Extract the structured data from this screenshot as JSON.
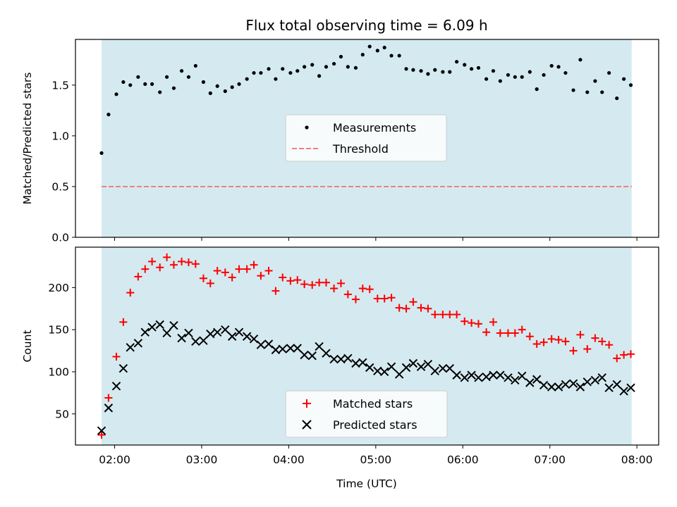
{
  "title": "Flux total observing time = 6.09 h",
  "xlabel": "Time (UTC)",
  "chart_data": [
    {
      "type": "scatter",
      "ylabel": "Matched/Predicted stars",
      "ylim": [
        0,
        1.95
      ],
      "yticks": [
        0.0,
        0.5,
        1.0,
        1.5
      ],
      "ytick_labels": [
        "0.0",
        "0.5",
        "1.0",
        "1.5"
      ],
      "x_unit": "hours UTC",
      "xlim": [
        1.55,
        8.25
      ],
      "shaded_span": [
        1.85,
        7.94
      ],
      "legend_position": "center",
      "legend": [
        "Measurements",
        "Threshold"
      ],
      "threshold": 0.5,
      "threshold_x": [
        1.85,
        7.94
      ],
      "colors": {
        "measurements": "#000000",
        "threshold": "#f08080",
        "shade": "#d4eaf0"
      },
      "series": [
        {
          "name": "Measurements",
          "x": [
            1.85,
            1.93,
            2.02,
            2.1,
            2.18,
            2.27,
            2.35,
            2.43,
            2.52,
            2.6,
            2.68,
            2.77,
            2.85,
            2.93,
            3.02,
            3.1,
            3.18,
            3.27,
            3.35,
            3.43,
            3.52,
            3.6,
            3.68,
            3.77,
            3.85,
            3.93,
            4.02,
            4.1,
            4.18,
            4.27,
            4.35,
            4.43,
            4.52,
            4.6,
            4.68,
            4.77,
            4.85,
            4.93,
            5.02,
            5.1,
            5.18,
            5.27,
            5.35,
            5.43,
            5.52,
            5.6,
            5.68,
            5.77,
            5.85,
            5.93,
            6.02,
            6.1,
            6.18,
            6.27,
            6.35,
            6.43,
            6.52,
            6.6,
            6.68,
            6.77,
            6.85,
            6.93,
            7.02,
            7.1,
            7.18,
            7.27,
            7.35,
            7.43,
            7.52,
            7.6,
            7.68,
            7.77,
            7.85,
            7.93
          ],
          "y": [
            0.83,
            1.21,
            1.41,
            1.53,
            1.5,
            1.58,
            1.51,
            1.51,
            1.43,
            1.58,
            1.47,
            1.64,
            1.58,
            1.69,
            1.53,
            1.42,
            1.49,
            1.44,
            1.48,
            1.51,
            1.56,
            1.62,
            1.62,
            1.66,
            1.56,
            1.66,
            1.62,
            1.64,
            1.68,
            1.7,
            1.59,
            1.68,
            1.71,
            1.78,
            1.68,
            1.67,
            1.8,
            1.88,
            1.84,
            1.87,
            1.79,
            1.79,
            1.66,
            1.65,
            1.64,
            1.61,
            1.65,
            1.63,
            1.63,
            1.73,
            1.7,
            1.66,
            1.67,
            1.56,
            1.64,
            1.54,
            1.6,
            1.58,
            1.58,
            1.63,
            1.46,
            1.6,
            1.69,
            1.68,
            1.62,
            1.45,
            1.75,
            1.43,
            1.54,
            1.43,
            1.62,
            1.37,
            1.56,
            1.5
          ]
        }
      ]
    },
    {
      "type": "scatter",
      "ylabel": "Count",
      "ylim": [
        13,
        248
      ],
      "yticks": [
        50,
        100,
        150,
        200
      ],
      "ytick_labels": [
        "50",
        "100",
        "150",
        "200"
      ],
      "x_unit": "hours UTC",
      "xlim": [
        1.55,
        8.25
      ],
      "xticks": [
        2,
        3,
        4,
        5,
        6,
        7,
        8
      ],
      "xtick_labels": [
        "02:00",
        "03:00",
        "04:00",
        "05:00",
        "06:00",
        "07:00",
        "08:00"
      ],
      "shaded_span": [
        1.85,
        7.94
      ],
      "legend_position": "lower center",
      "legend": [
        "Matched stars",
        "Predicted stars"
      ],
      "colors": {
        "matched": "#ff0000",
        "predicted": "#000000",
        "shade": "#d4eaf0"
      },
      "series": [
        {
          "name": "Matched stars",
          "x": [
            1.85,
            1.93,
            2.02,
            2.1,
            2.18,
            2.27,
            2.35,
            2.43,
            2.52,
            2.6,
            2.68,
            2.77,
            2.85,
            2.93,
            3.02,
            3.1,
            3.18,
            3.27,
            3.35,
            3.43,
            3.52,
            3.6,
            3.68,
            3.77,
            3.85,
            3.93,
            4.02,
            4.1,
            4.18,
            4.27,
            4.35,
            4.43,
            4.52,
            4.6,
            4.68,
            4.77,
            4.85,
            4.93,
            5.02,
            5.1,
            5.18,
            5.27,
            5.35,
            5.43,
            5.52,
            5.6,
            5.68,
            5.77,
            5.85,
            5.93,
            6.02,
            6.1,
            6.18,
            6.27,
            6.35,
            6.43,
            6.52,
            6.6,
            6.68,
            6.77,
            6.85,
            6.93,
            7.02,
            7.1,
            7.18,
            7.27,
            7.35,
            7.43,
            7.52,
            7.6,
            7.68,
            7.77,
            7.85,
            7.93
          ],
          "y": [
            25,
            69,
            118,
            159,
            194,
            213,
            222,
            231,
            224,
            236,
            227,
            231,
            230,
            228,
            211,
            205,
            220,
            218,
            212,
            222,
            222,
            227,
            214,
            220,
            196,
            212,
            208,
            209,
            204,
            203,
            206,
            206,
            199,
            205,
            192,
            186,
            199,
            198,
            187,
            187,
            188,
            176,
            175,
            183,
            176,
            175,
            168,
            168,
            168,
            168,
            160,
            158,
            157,
            147,
            159,
            146,
            146,
            146,
            150,
            142,
            133,
            135,
            139,
            138,
            136,
            125,
            144,
            127,
            140,
            136,
            132,
            116,
            120,
            121
          ]
        },
        {
          "name": "Predicted stars",
          "x": [
            1.85,
            1.93,
            2.02,
            2.1,
            2.18,
            2.27,
            2.35,
            2.43,
            2.52,
            2.6,
            2.68,
            2.77,
            2.85,
            2.93,
            3.02,
            3.1,
            3.18,
            3.27,
            3.35,
            3.43,
            3.52,
            3.6,
            3.68,
            3.77,
            3.85,
            3.93,
            4.02,
            4.1,
            4.18,
            4.27,
            4.35,
            4.43,
            4.52,
            4.6,
            4.68,
            4.77,
            4.85,
            4.93,
            5.02,
            5.1,
            5.18,
            5.27,
            5.35,
            5.43,
            5.52,
            5.6,
            5.68,
            5.77,
            5.85,
            5.93,
            6.02,
            6.1,
            6.18,
            6.27,
            6.35,
            6.43,
            6.52,
            6.6,
            6.68,
            6.77,
            6.85,
            6.93,
            7.02,
            7.1,
            7.18,
            7.27,
            7.35,
            7.43,
            7.52,
            7.6,
            7.68,
            7.77,
            7.85,
            7.93
          ],
          "y": [
            30,
            57,
            83,
            104,
            129,
            134,
            147,
            153,
            156,
            146,
            155,
            140,
            146,
            136,
            137,
            145,
            147,
            150,
            142,
            147,
            142,
            139,
            132,
            133,
            126,
            127,
            128,
            128,
            120,
            119,
            130,
            122,
            115,
            115,
            116,
            110,
            111,
            105,
            101,
            100,
            106,
            97,
            105,
            110,
            106,
            109,
            101,
            104,
            104,
            96,
            93,
            96,
            93,
            94,
            96,
            96,
            93,
            90,
            95,
            87,
            91,
            84,
            82,
            82,
            85,
            86,
            82,
            88,
            90,
            93,
            81,
            85,
            77,
            81
          ]
        }
      ]
    }
  ]
}
